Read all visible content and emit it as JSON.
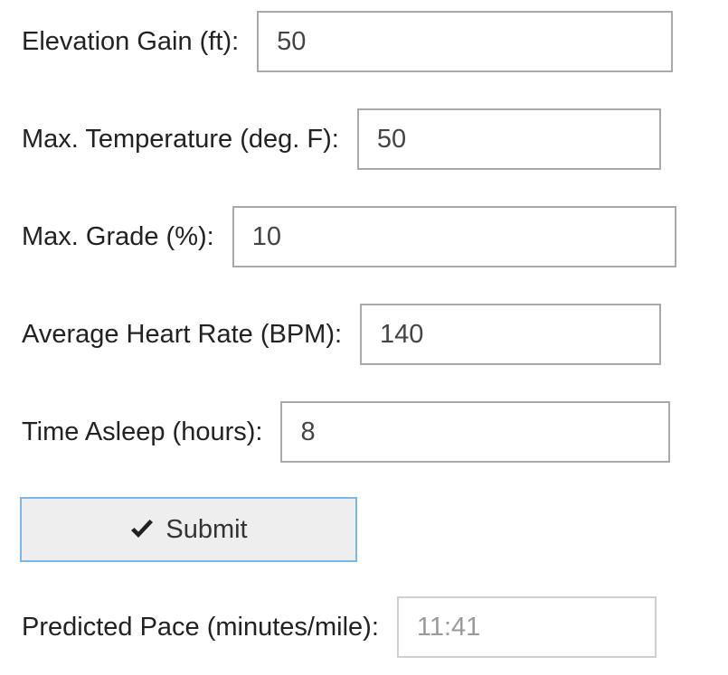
{
  "form": {
    "fields": [
      {
        "label": "Elevation Gain (ft):",
        "value": "50"
      },
      {
        "label": "Max. Temperature (deg. F):",
        "value": "50"
      },
      {
        "label": "Max. Grade (%):",
        "value": "10"
      },
      {
        "label": "Average Heart Rate (BPM):",
        "value": "140"
      },
      {
        "label": "Time Asleep (hours):",
        "value": "8"
      }
    ],
    "submit": {
      "label": "Submit",
      "icon": "check-icon"
    },
    "result": {
      "label": "Predicted Pace (minutes/mile):",
      "value": "11:41"
    }
  },
  "colors": {
    "button_border": "#79b8e6",
    "button_bg": "#eeeeee",
    "input_border": "#a9a9a9"
  }
}
